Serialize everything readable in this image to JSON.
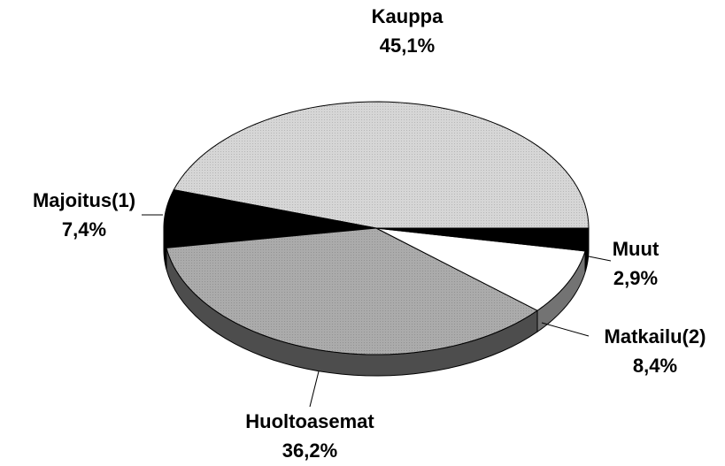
{
  "chart_data": {
    "type": "pie",
    "categories": [
      "Kauppa",
      "Majoitus(1)",
      "Huoltoasemat",
      "Matkailu(2)",
      "Muut"
    ],
    "values": [
      45.1,
      7.4,
      36.2,
      8.4,
      2.9
    ],
    "value_labels": [
      "45,1%",
      "7,4%",
      "36,2%",
      "8,4%",
      "2,9%"
    ],
    "colors": [
      "#d6d6d6",
      "#000000",
      "#ababab",
      "#ffffff",
      "#000000"
    ]
  }
}
